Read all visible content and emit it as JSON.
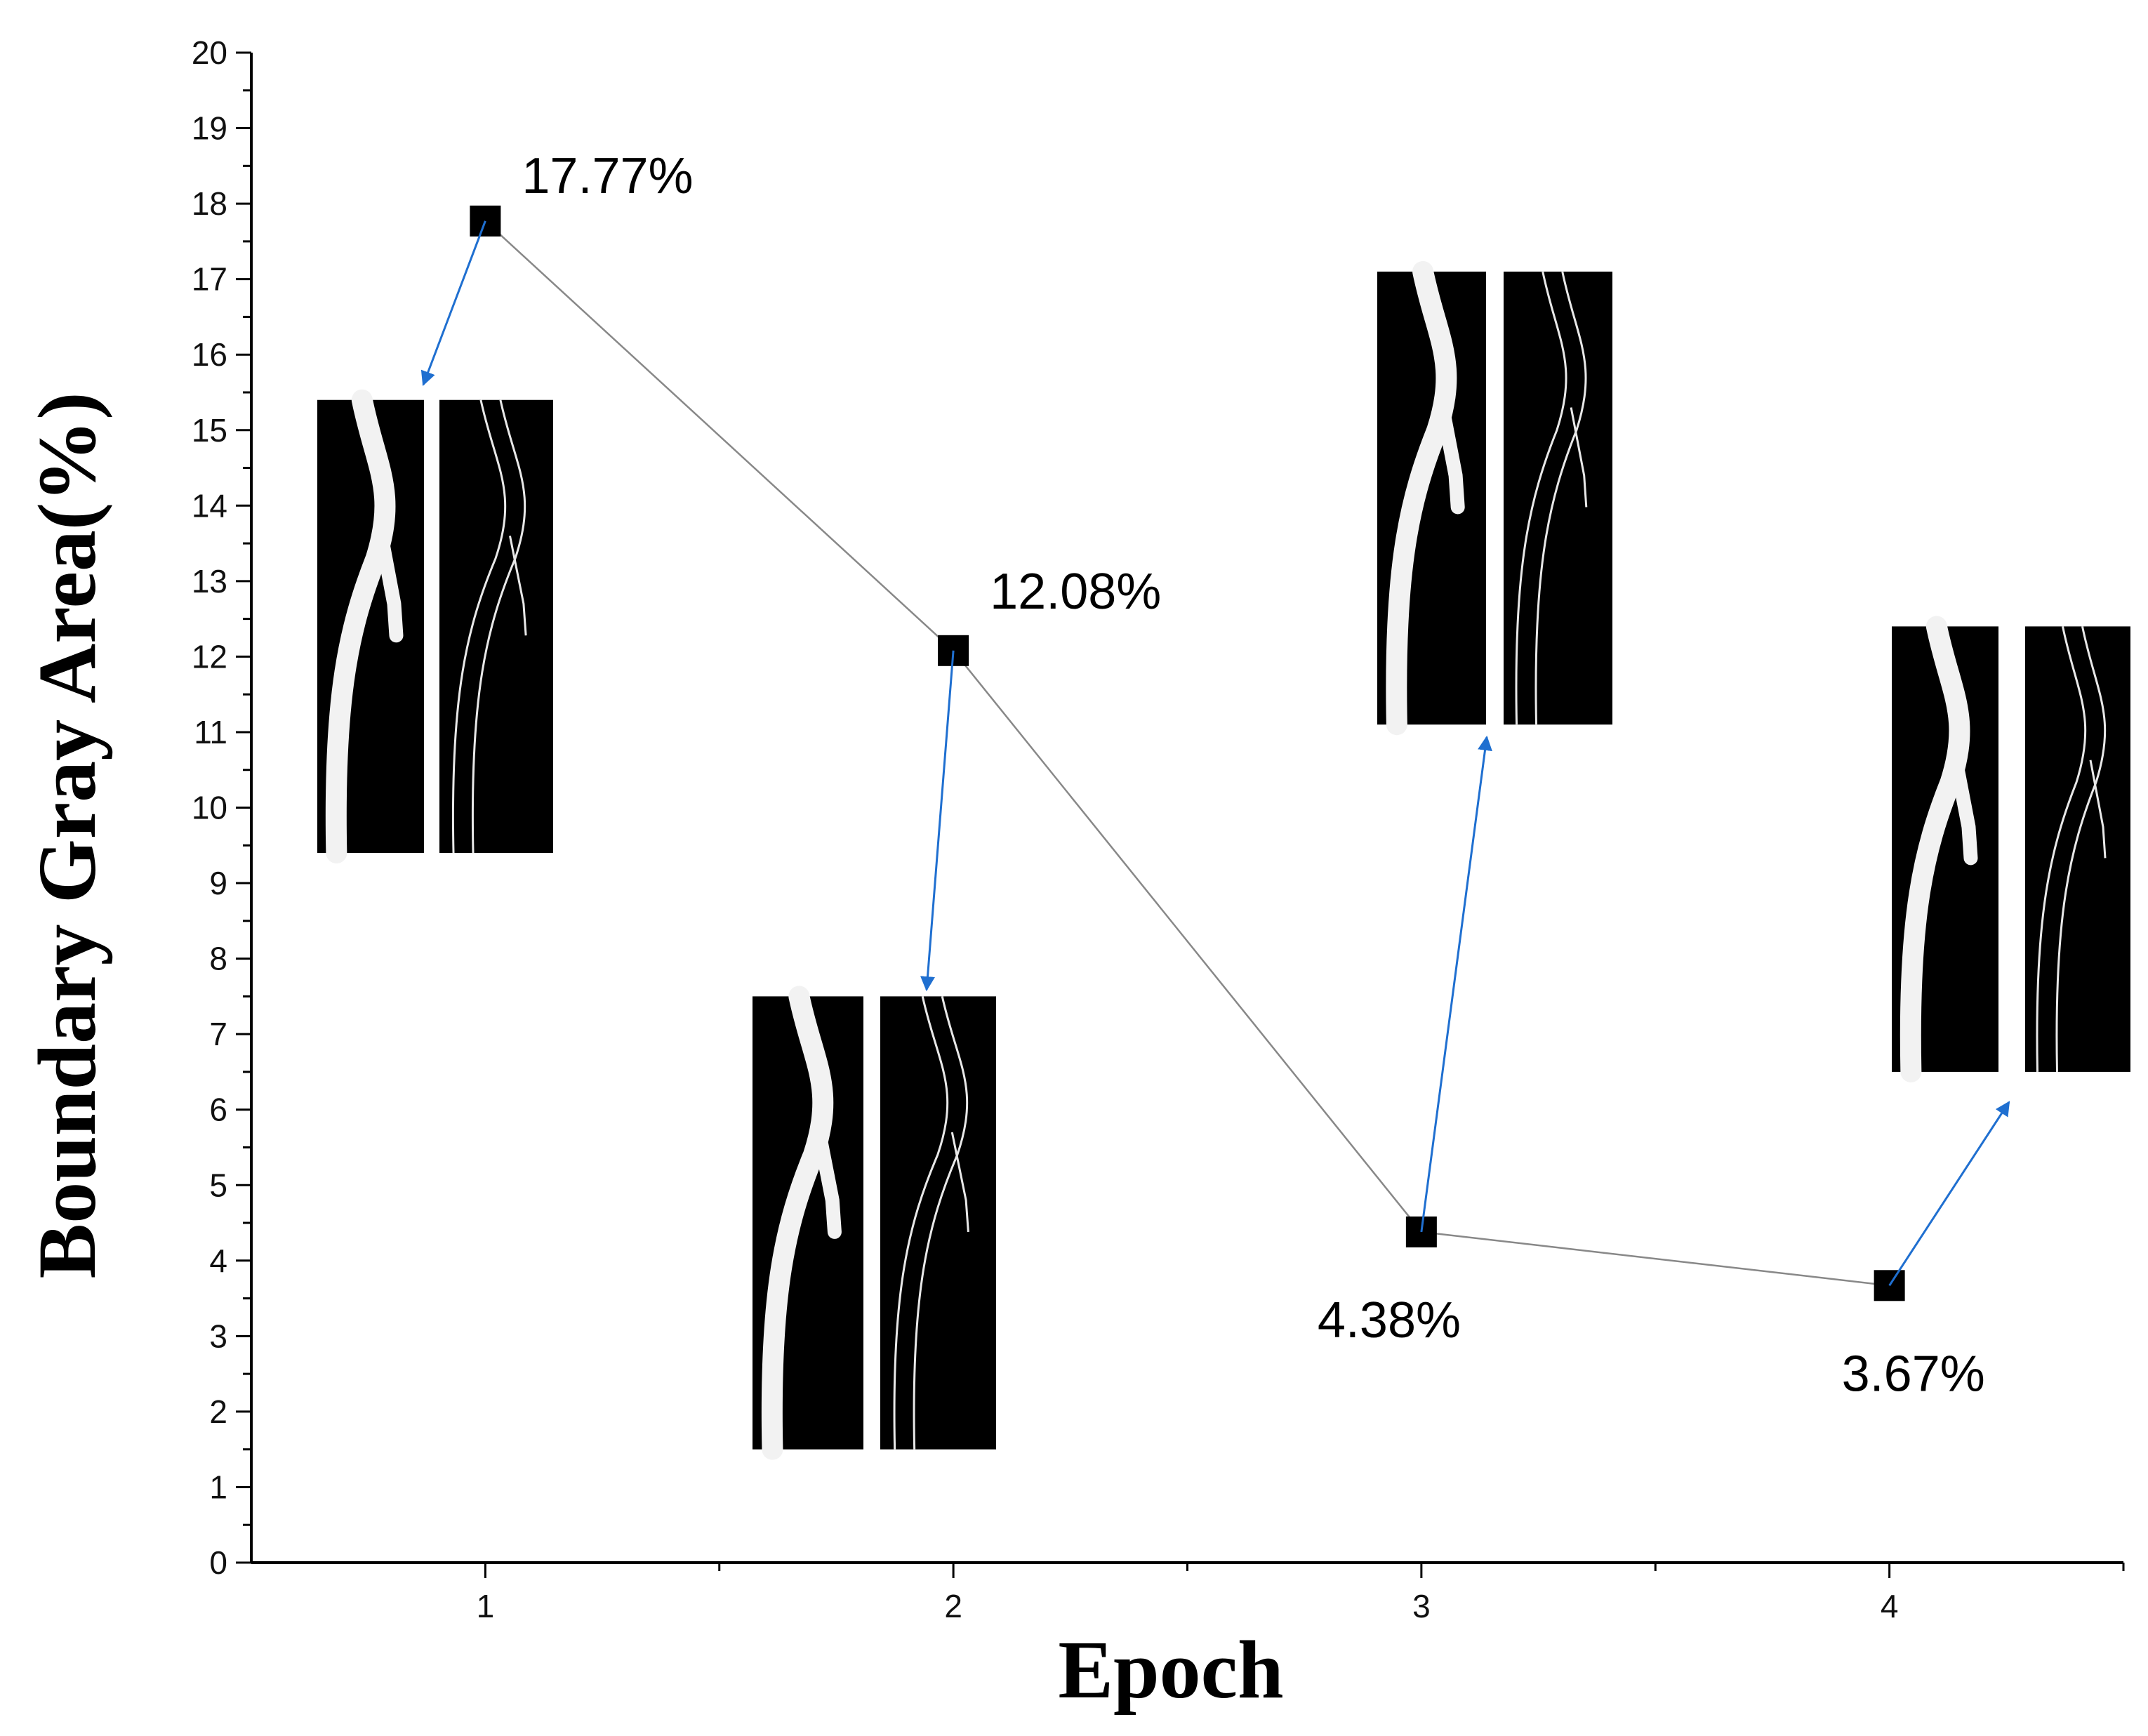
{
  "chart_data": {
    "type": "line",
    "title": "",
    "xlabel": "Epoch",
    "ylabel": "Boundary Gray Area(%)",
    "x": [
      1,
      2,
      3,
      4
    ],
    "x_ticks": [
      "1",
      "2",
      "3",
      "4"
    ],
    "xlim": [
      0.5,
      4.5
    ],
    "ylim": [
      0,
      20
    ],
    "y_ticks": [
      "0",
      "1",
      "2",
      "3",
      "4",
      "5",
      "6",
      "7",
      "8",
      "9",
      "10",
      "11",
      "12",
      "13",
      "14",
      "15",
      "16",
      "17",
      "18",
      "19",
      "20"
    ],
    "series": [
      {
        "values": [
          17.77,
          12.08,
          4.38,
          3.67
        ],
        "marker": "square",
        "color": "#000000",
        "line_color": "#888888"
      }
    ],
    "data_labels": [
      "17.77%",
      "12.08%",
      "4.38%",
      "3.67%"
    ],
    "grid": false,
    "legend": "none",
    "annotations": {
      "arrow_color": "#1f6fd0",
      "inset_pairs": [
        {
          "epoch": 1,
          "description": "vessel segmentation and boundary image pair",
          "y_top": 15.4,
          "y_bottom": 9.4
        },
        {
          "epoch": 2,
          "description": "vessel segmentation and boundary image pair",
          "y_top": 7.5,
          "y_bottom": 1.5
        },
        {
          "epoch": 3,
          "description": "vessel segmentation and boundary image pair",
          "y_top": 17.1,
          "y_bottom": 11.1
        },
        {
          "epoch": 4,
          "description": "vessel segmentation and boundary image pair",
          "y_top": 12.4,
          "y_bottom": 6.5
        }
      ]
    }
  }
}
